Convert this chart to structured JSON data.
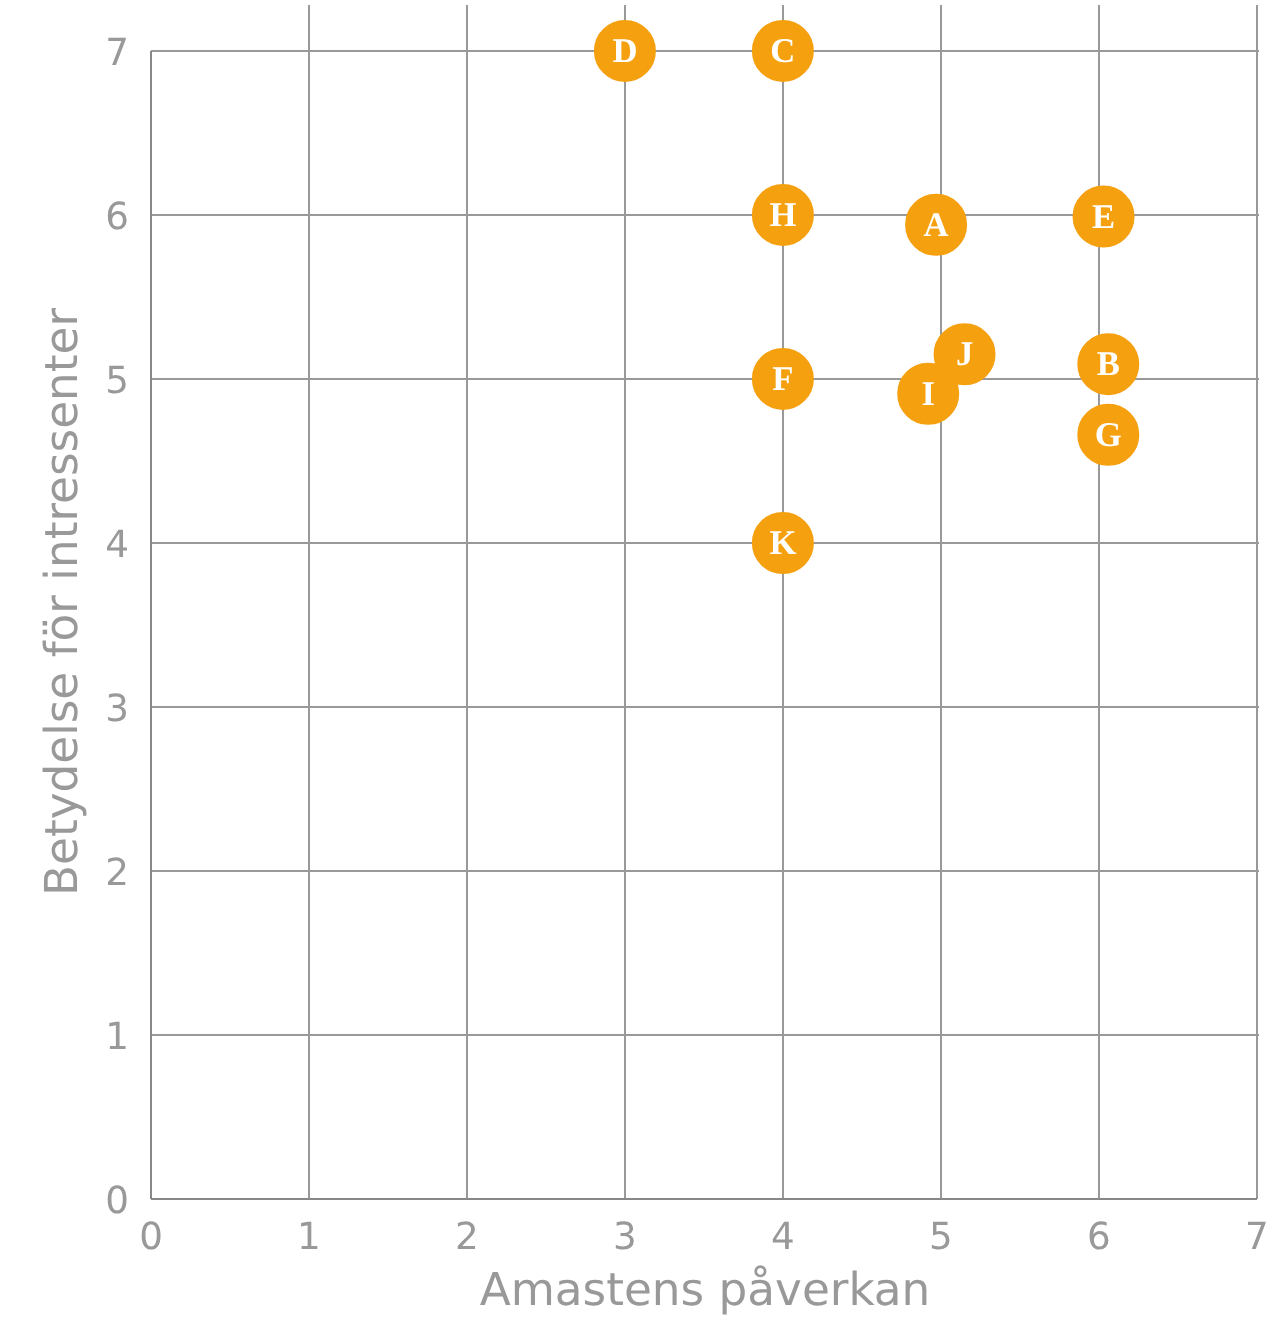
{
  "chart_data": {
    "type": "scatter",
    "xlabel": "Amastens påverkan",
    "ylabel": "Betydelse för intressenter",
    "x": [
      3,
      4,
      4,
      4.97,
      6.03,
      5.15,
      6.06,
      4,
      4.92,
      6.06,
      4
    ],
    "values": [
      7,
      7,
      6,
      5.94,
      5.99,
      5.15,
      5.09,
      5,
      4.91,
      4.66,
      4
    ],
    "color": "#f5a00f",
    "marker": "circle",
    "grid": true,
    "xlim": [
      0,
      7
    ],
    "ylim": [
      0,
      7
    ],
    "xticks": [
      0,
      1,
      2,
      3,
      4,
      5,
      6,
      7
    ],
    "yticks": [
      0,
      1,
      2,
      3,
      4,
      5,
      6,
      7
    ],
    "annotations": [
      {
        "text": "D",
        "x": 3,
        "y": 7
      },
      {
        "text": "C",
        "x": 4,
        "y": 7
      },
      {
        "text": "H",
        "x": 4,
        "y": 6
      },
      {
        "text": "A",
        "x": 4.97,
        "y": 5.94
      },
      {
        "text": "E",
        "x": 6.03,
        "y": 5.99
      },
      {
        "text": "J",
        "x": 5.15,
        "y": 5.15
      },
      {
        "text": "B",
        "x": 6.06,
        "y": 5.09
      },
      {
        "text": "F",
        "x": 4,
        "y": 5
      },
      {
        "text": "I",
        "x": 4.92,
        "y": 4.91
      },
      {
        "text": "G",
        "x": 6.06,
        "y": 4.66
      },
      {
        "text": "K",
        "x": 4,
        "y": 4
      }
    ]
  }
}
